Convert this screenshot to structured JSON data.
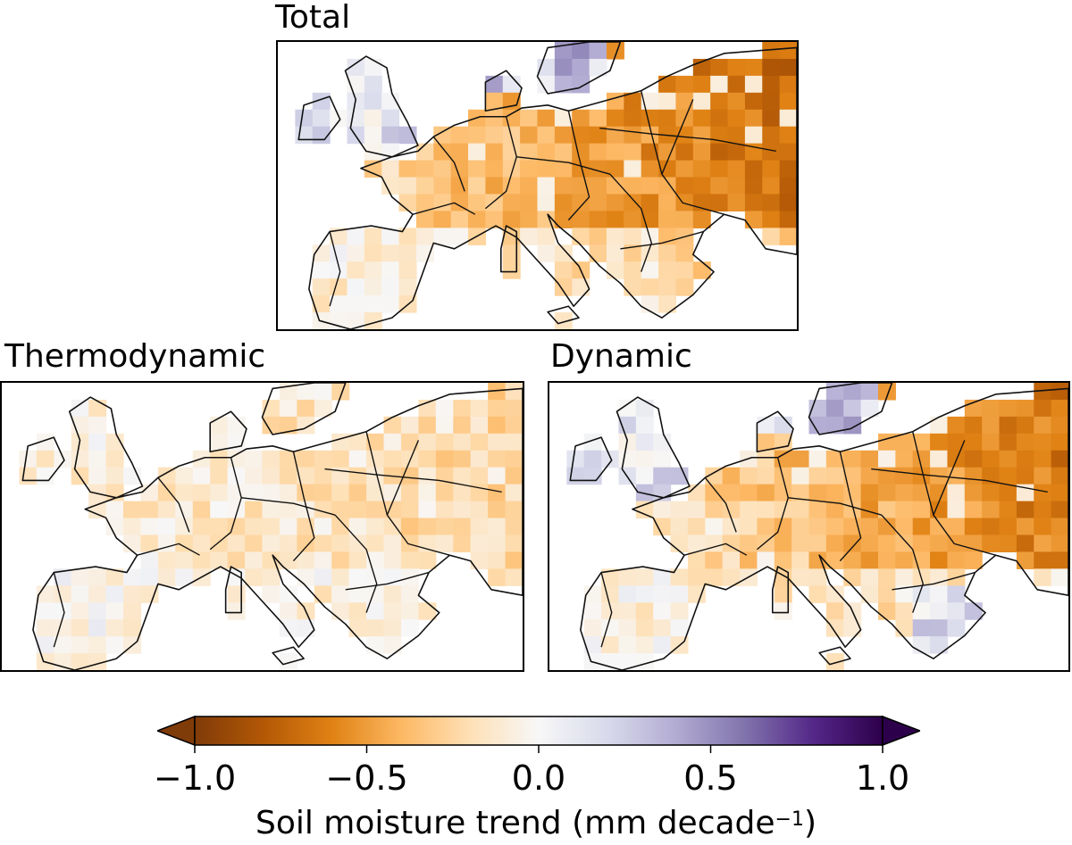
{
  "panels": [
    {
      "id": "total",
      "title": "Total",
      "mean_trend": -0.55,
      "east_gradient": 0.35,
      "north_bias": 0.05,
      "wet_uk": true,
      "wet_scandinavia": true,
      "wet_balkan": false
    },
    {
      "id": "thermo",
      "title": "Thermodynamic",
      "mean_trend": -0.2,
      "east_gradient": 0.12,
      "north_bias": 0.0,
      "wet_uk": false,
      "wet_scandinavia": false,
      "wet_balkan": false
    },
    {
      "id": "dynamic",
      "title": "Dynamic",
      "mean_trend": -0.45,
      "east_gradient": 0.35,
      "north_bias": 0.1,
      "wet_uk": true,
      "wet_scandinavia": true,
      "wet_balkan": true
    }
  ],
  "colorbar": {
    "min": -1.0,
    "max": 1.0,
    "colors": [
      "#7f3b08",
      "#b35806",
      "#e08214",
      "#fdb863",
      "#fee0b6",
      "#f7f7f7",
      "#d8daeb",
      "#b2abd2",
      "#8073ac",
      "#542788",
      "#2d004b"
    ],
    "ticks": [
      {
        "value": -1.0,
        "label": "−1.0"
      },
      {
        "value": -0.5,
        "label": "−0.5"
      },
      {
        "value": 0.0,
        "label": "0.0"
      },
      {
        "value": 0.5,
        "label": "0.5"
      },
      {
        "value": 1.0,
        "label": "1.0"
      }
    ],
    "label_main": "Soil moisture trend (mm decade",
    "label_sup": "−1",
    "label_close": ")"
  }
}
